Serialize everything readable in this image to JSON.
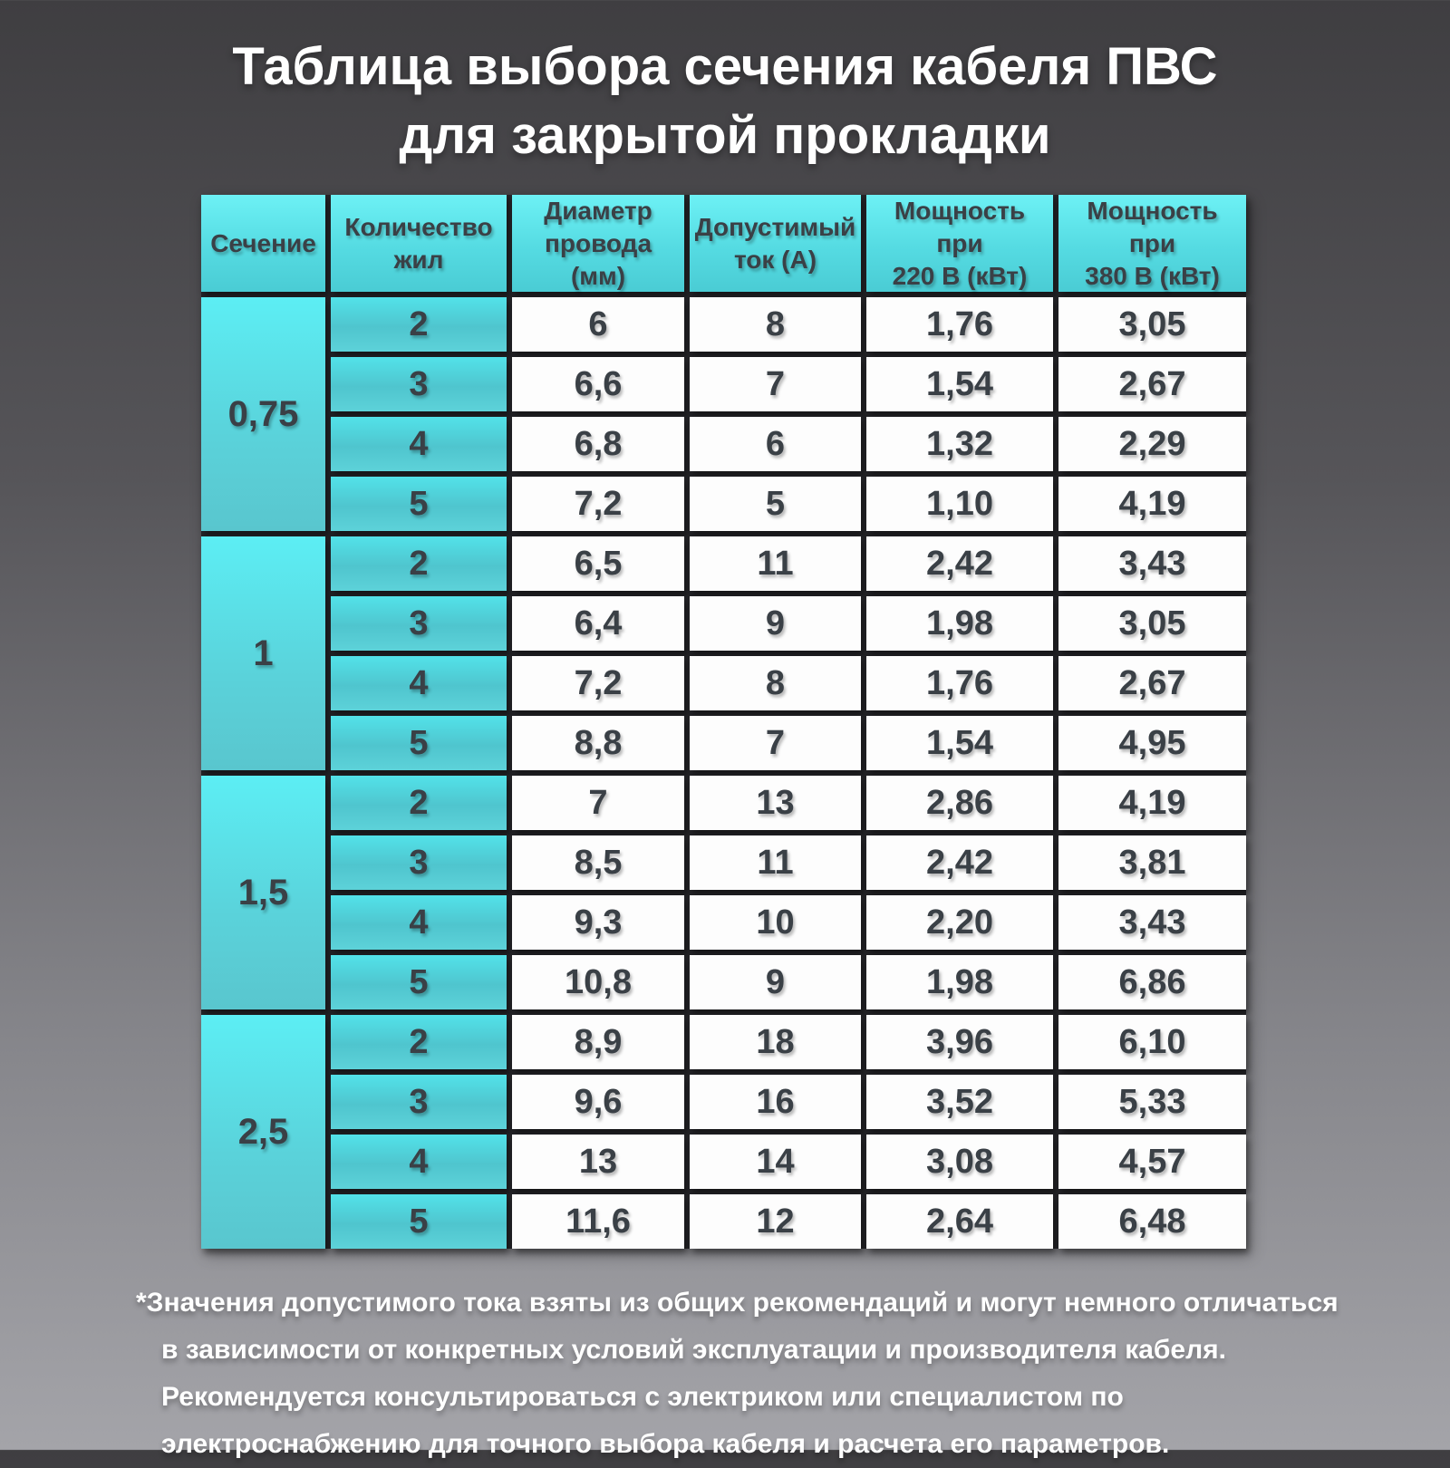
{
  "title": {
    "text": "Таблица выбора сечения кабеля ПВС\nдля закрытой прокладки"
  },
  "chart_data": {
    "type": "table",
    "title": "Таблица выбора сечения кабеля ПВС для закрытой прокладки",
    "columns": [
      "Сечение",
      "Количество\nжил",
      "Диаметр\nпровода (мм)",
      "Допустимый\nток (А)",
      "Мощность при\n220 В (кВт)",
      "Мощность при\n380 В (кВт)"
    ],
    "groups": [
      {
        "section": "0,75",
        "rows": [
          {
            "cores": "2",
            "diameter": "6",
            "current": "8",
            "power_220": "1,76",
            "power_380": "3,05"
          },
          {
            "cores": "3",
            "diameter": "6,6",
            "current": "7",
            "power_220": "1,54",
            "power_380": "2,67"
          },
          {
            "cores": "4",
            "diameter": "6,8",
            "current": "6",
            "power_220": "1,32",
            "power_380": "2,29"
          },
          {
            "cores": "5",
            "diameter": "7,2",
            "current": "5",
            "power_220": "1,10",
            "power_380": "4,19"
          }
        ]
      },
      {
        "section": "1",
        "rows": [
          {
            "cores": "2",
            "diameter": "6,5",
            "current": "11",
            "power_220": "2,42",
            "power_380": "3,43"
          },
          {
            "cores": "3",
            "diameter": "6,4",
            "current": "9",
            "power_220": "1,98",
            "power_380": "3,05"
          },
          {
            "cores": "4",
            "diameter": "7,2",
            "current": "8",
            "power_220": "1,76",
            "power_380": "2,67"
          },
          {
            "cores": "5",
            "diameter": "8,8",
            "current": "7",
            "power_220": "1,54",
            "power_380": "4,95"
          }
        ]
      },
      {
        "section": "1,5",
        "rows": [
          {
            "cores": "2",
            "diameter": "7",
            "current": "13",
            "power_220": "2,86",
            "power_380": "4,19"
          },
          {
            "cores": "3",
            "diameter": "8,5",
            "current": "11",
            "power_220": "2,42",
            "power_380": "3,81"
          },
          {
            "cores": "4",
            "diameter": "9,3",
            "current": "10",
            "power_220": "2,20",
            "power_380": "3,43"
          },
          {
            "cores": "5",
            "diameter": "10,8",
            "current": "9",
            "power_220": "1,98",
            "power_380": "6,86"
          }
        ]
      },
      {
        "section": "2,5",
        "rows": [
          {
            "cores": "2",
            "diameter": "8,9",
            "current": "18",
            "power_220": "3,96",
            "power_380": "6,10"
          },
          {
            "cores": "3",
            "diameter": "9,6",
            "current": "16",
            "power_220": "3,52",
            "power_380": "5,33"
          },
          {
            "cores": "4",
            "diameter": "13",
            "current": "14",
            "power_220": "3,08",
            "power_380": "4,57"
          },
          {
            "cores": "5",
            "diameter": "11,6",
            "current": "12",
            "power_220": "2,64",
            "power_380": "6,48"
          }
        ]
      }
    ]
  },
  "footnote": {
    "text": "*Значения допустимого тока взяты из общих рекомендаций и могут немного отличаться\nв зависимости от конкретных условий эксплуатации и производителя кабеля.\nРекомендуется консультироваться с электриком или специалистом по\nэлектроснабжению для точного выбора кабеля и расчета его параметров."
  },
  "colors": {
    "background_top": "#3f3e41",
    "background_bottom": "#a4a4a9",
    "accent_cyan": "#56dde5",
    "cell_text": "#3a4046",
    "white_cell": "#fdfdfd",
    "table_backdrop": "#26262a",
    "title_text": "#ffffff"
  }
}
